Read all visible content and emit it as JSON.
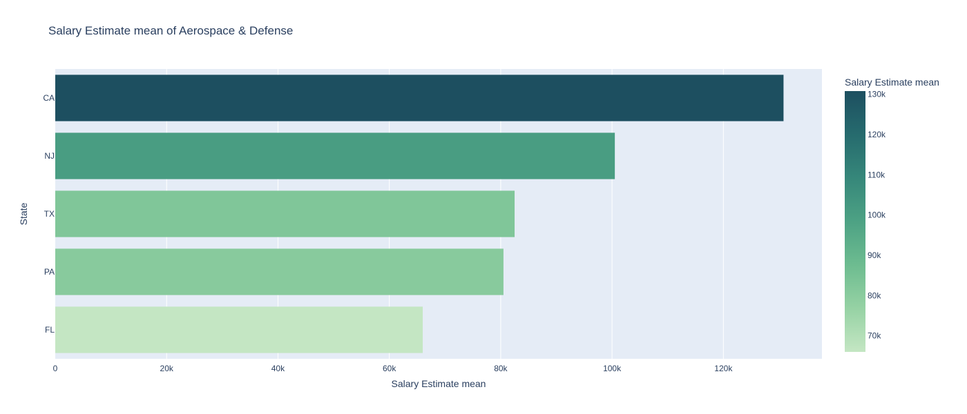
{
  "chart_data": {
    "type": "bar",
    "orientation": "horizontal",
    "title": "Salary Estimate mean of Aerospace & Defense",
    "xlabel": "Salary Estimate mean",
    "ylabel": "State",
    "categories": [
      "CA",
      "NJ",
      "TX",
      "PA",
      "FL"
    ],
    "values": [
      130800,
      100500,
      82500,
      80500,
      66000
    ],
    "xlim": [
      0,
      137700
    ],
    "xticks": [
      {
        "value": 0,
        "label": "0"
      },
      {
        "value": 20000,
        "label": "20k"
      },
      {
        "value": 40000,
        "label": "40k"
      },
      {
        "value": 60000,
        "label": "60k"
      },
      {
        "value": 80000,
        "label": "80k"
      },
      {
        "value": 100000,
        "label": "100k"
      },
      {
        "value": 120000,
        "label": "120k"
      }
    ],
    "grid": true,
    "colorbar": {
      "title": "Salary Estimate mean",
      "range": [
        66000,
        130800
      ],
      "colors": [
        "#c4e6c3",
        "#96d2a4",
        "#6dbc90",
        "#4da284",
        "#36877a",
        "#266b6e",
        "#1d4f60"
      ],
      "ticks": [
        {
          "value": 70000,
          "label": "70k"
        },
        {
          "value": 80000,
          "label": "80k"
        },
        {
          "value": 90000,
          "label": "90k"
        },
        {
          "value": 100000,
          "label": "100k"
        },
        {
          "value": 110000,
          "label": "110k"
        },
        {
          "value": 120000,
          "label": "120k"
        },
        {
          "value": 130000,
          "label": "130k"
        }
      ]
    },
    "plot_background": "#e5ecf6"
  }
}
